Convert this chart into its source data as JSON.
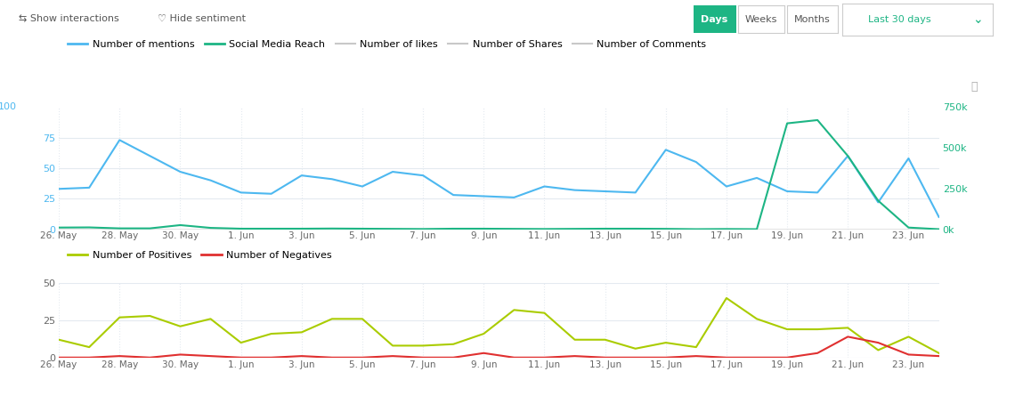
{
  "n_days": 30,
  "xtick_positions": [
    0,
    2,
    4,
    6,
    8,
    10,
    12,
    14,
    16,
    18,
    20,
    22,
    24,
    26,
    28
  ],
  "xtick_labels": [
    "26. May",
    "28. May",
    "30. May",
    "1. Jun",
    "3. Jun",
    "5. Jun",
    "7. Jun",
    "9. Jun",
    "11. Jun",
    "13. Jun",
    "15. Jun",
    "17. Jun",
    "19. Jun",
    "21. Jun",
    "23. Jun"
  ],
  "mentions": [
    33,
    34,
    73,
    60,
    47,
    40,
    30,
    29,
    44,
    41,
    35,
    47,
    44,
    28,
    27,
    26,
    35,
    32,
    31,
    30,
    65,
    55,
    35,
    42,
    31,
    30,
    60,
    22,
    58,
    10
  ],
  "social_reach_k": [
    10,
    11,
    5,
    5,
    25,
    8,
    3,
    3,
    3,
    4,
    3,
    2,
    1,
    3,
    3,
    2,
    1,
    2,
    3,
    3,
    2,
    0,
    1,
    0,
    650,
    670,
    450,
    175,
    10,
    0
  ],
  "positives": [
    12,
    7,
    27,
    28,
    21,
    26,
    10,
    16,
    17,
    26,
    26,
    8,
    8,
    9,
    16,
    32,
    30,
    12,
    12,
    6,
    10,
    7,
    40,
    26,
    19,
    19,
    20,
    5,
    14,
    3
  ],
  "negatives": [
    0,
    0,
    1,
    0,
    2,
    1,
    0,
    0,
    1,
    0,
    0,
    1,
    0,
    0,
    3,
    0,
    0,
    1,
    0,
    0,
    0,
    1,
    0,
    0,
    0,
    3,
    14,
    10,
    2,
    1
  ],
  "mention_color": "#4db8f0",
  "reach_color": "#1db584",
  "likes_color": "#c8c8c8",
  "shares_color": "#c8c8c8",
  "comments_color": "#c8c8c8",
  "positive_color": "#aacc00",
  "negative_color": "#e03030",
  "grid_color": "#e4eaf0",
  "bg_color": "#ffffff",
  "text_color": "#666666",
  "left_tick_color": "#4db8f0",
  "right_tick_color": "#1db584",
  "top_legend": [
    "Number of mentions",
    "Social Media Reach",
    "Number of likes",
    "Number of Shares",
    "Number of Comments"
  ],
  "bottom_legend": [
    "Number of Positives",
    "Number of Negatives"
  ],
  "ui_show": "⇆ Show interactions",
  "ui_hide": "♡ Hide sentiment",
  "btn_days": "Days",
  "btn_weeks": "Weeks",
  "btn_months": "Months",
  "btn_last30": "Last 30 days",
  "days_btn_color": "#1db584",
  "days_btn_text_color": "#ffffff",
  "btn_border_color": "#cccccc",
  "dropdown_text_color": "#1db584"
}
